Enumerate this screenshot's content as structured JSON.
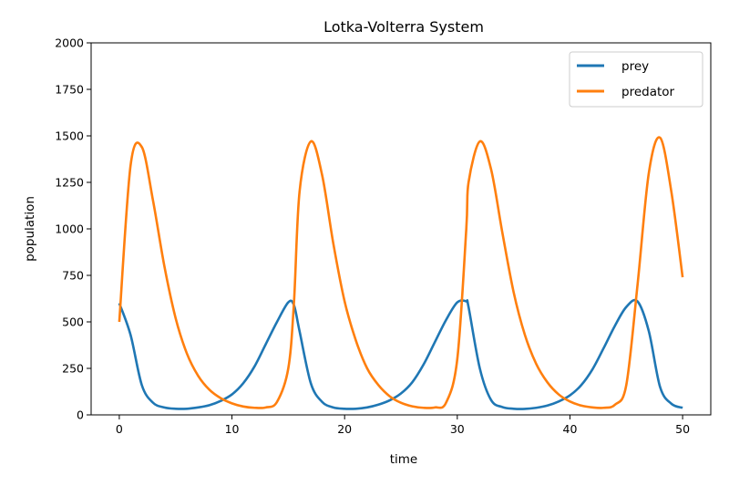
{
  "chart_data": {
    "type": "line",
    "title": "Lotka-Volterra System",
    "xlabel": "time",
    "ylabel": "population",
    "xlim": [
      -2.5,
      52.5
    ],
    "ylim": [
      0,
      2000
    ],
    "xticks": [
      0,
      10,
      20,
      30,
      40,
      50
    ],
    "yticks": [
      0,
      250,
      500,
      750,
      1000,
      1250,
      1500,
      1750,
      2000
    ],
    "legend_position": "top-right",
    "x": [
      0,
      1,
      2,
      3,
      4,
      5,
      6,
      7,
      8,
      9,
      10,
      11,
      12,
      13,
      14,
      15,
      15.5,
      16,
      17,
      18,
      19,
      20,
      21,
      22,
      23,
      24,
      25,
      26,
      27,
      28,
      29,
      30,
      30.8,
      31,
      32,
      33,
      34,
      35,
      36,
      37,
      38,
      39,
      40,
      41,
      42,
      43,
      44,
      45,
      46,
      47,
      48,
      49,
      50
    ],
    "series": [
      {
        "name": "prey",
        "color": "#1f77b4",
        "values": [
          600,
          430,
          160,
          65,
          40,
          33,
          33,
          40,
          52,
          75,
          110,
          170,
          260,
          380,
          500,
          605,
          590,
          450,
          170,
          70,
          40,
          33,
          33,
          40,
          55,
          78,
          115,
          175,
          270,
          390,
          510,
          605,
          610,
          580,
          250,
          80,
          42,
          33,
          32,
          38,
          50,
          72,
          105,
          160,
          245,
          360,
          480,
          580,
          610,
          450,
          150,
          60,
          38
        ]
      },
      {
        "name": "predator",
        "color": "#ff7f0e",
        "values": [
          500,
          1340,
          1440,
          1150,
          800,
          520,
          330,
          210,
          135,
          90,
          62,
          45,
          38,
          40,
          70,
          250,
          600,
          1200,
          1470,
          1290,
          920,
          610,
          400,
          250,
          160,
          100,
          65,
          46,
          38,
          40,
          65,
          300,
          1000,
          1250,
          1470,
          1320,
          980,
          660,
          430,
          275,
          175,
          110,
          72,
          50,
          40,
          38,
          55,
          160,
          700,
          1300,
          1490,
          1200,
          740
        ]
      }
    ]
  }
}
